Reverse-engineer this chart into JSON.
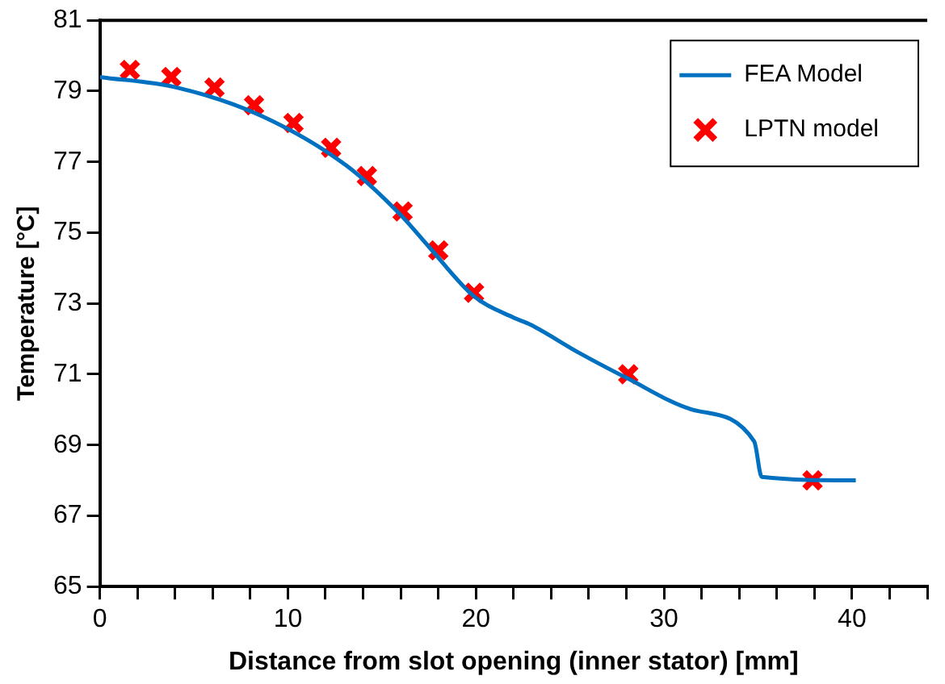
{
  "chart_data": {
    "type": "line",
    "xlabel": "Distance from slot opening (inner stator) [mm]",
    "ylabel": "Temperature [°C]",
    "xlim": [
      0,
      44
    ],
    "xticks": [
      0,
      {
        "value": 2,
        "label": null
      },
      {
        "value": 4,
        "label": null
      },
      {
        "value": 6,
        "label": null
      },
      {
        "value": 8,
        "label": null
      },
      10,
      {
        "value": 12,
        "label": null
      },
      {
        "value": 14,
        "label": null
      },
      {
        "value": 16,
        "label": null
      },
      {
        "value": 18,
        "label": null
      },
      20,
      {
        "value": 22,
        "label": null
      },
      {
        "value": 24,
        "label": null
      },
      {
        "value": 26,
        "label": null
      },
      {
        "value": 28,
        "label": null
      },
      30,
      {
        "value": 32,
        "label": null
      },
      {
        "value": 34,
        "label": null
      },
      {
        "value": 36,
        "label": null
      },
      {
        "value": 38,
        "label": null
      },
      40,
      {
        "value": 42,
        "label": null
      },
      {
        "value": 44,
        "label": null
      }
    ],
    "ylim": [
      65,
      81
    ],
    "yticks": [
      65,
      67,
      69,
      71,
      73,
      75,
      77,
      79,
      81
    ],
    "grid": false,
    "legend": "top right",
    "series": [
      {
        "name": "FEA Model",
        "color": "#0070c0",
        "marker": "none",
        "x": [
          0,
          4.1,
          8.6,
          13.1,
          16,
          17.5,
          19.9,
          22,
          22.9,
          25.5,
          28,
          31.5,
          34.8,
          35.2,
          40.2
        ],
        "values": [
          79.4,
          79.1,
          78.3,
          76.9,
          75.5,
          74.6,
          73.2,
          72.6,
          72.4,
          71.6,
          70.9,
          70,
          69.1,
          68.1,
          68
        ]
      },
      {
        "name": "LPTN model",
        "type": "scatter",
        "color": "#ff0000",
        "marker": "cross",
        "x": [
          1.6,
          3.8,
          6.1,
          8.2,
          10.3,
          12.3,
          14.2,
          16.1,
          18,
          19.9,
          28.1,
          37.9
        ],
        "values": [
          79.6,
          79.4,
          79.1,
          78.6,
          78.1,
          77.4,
          76.6,
          75.6,
          74.5,
          73.3,
          71,
          68
        ]
      }
    ]
  }
}
